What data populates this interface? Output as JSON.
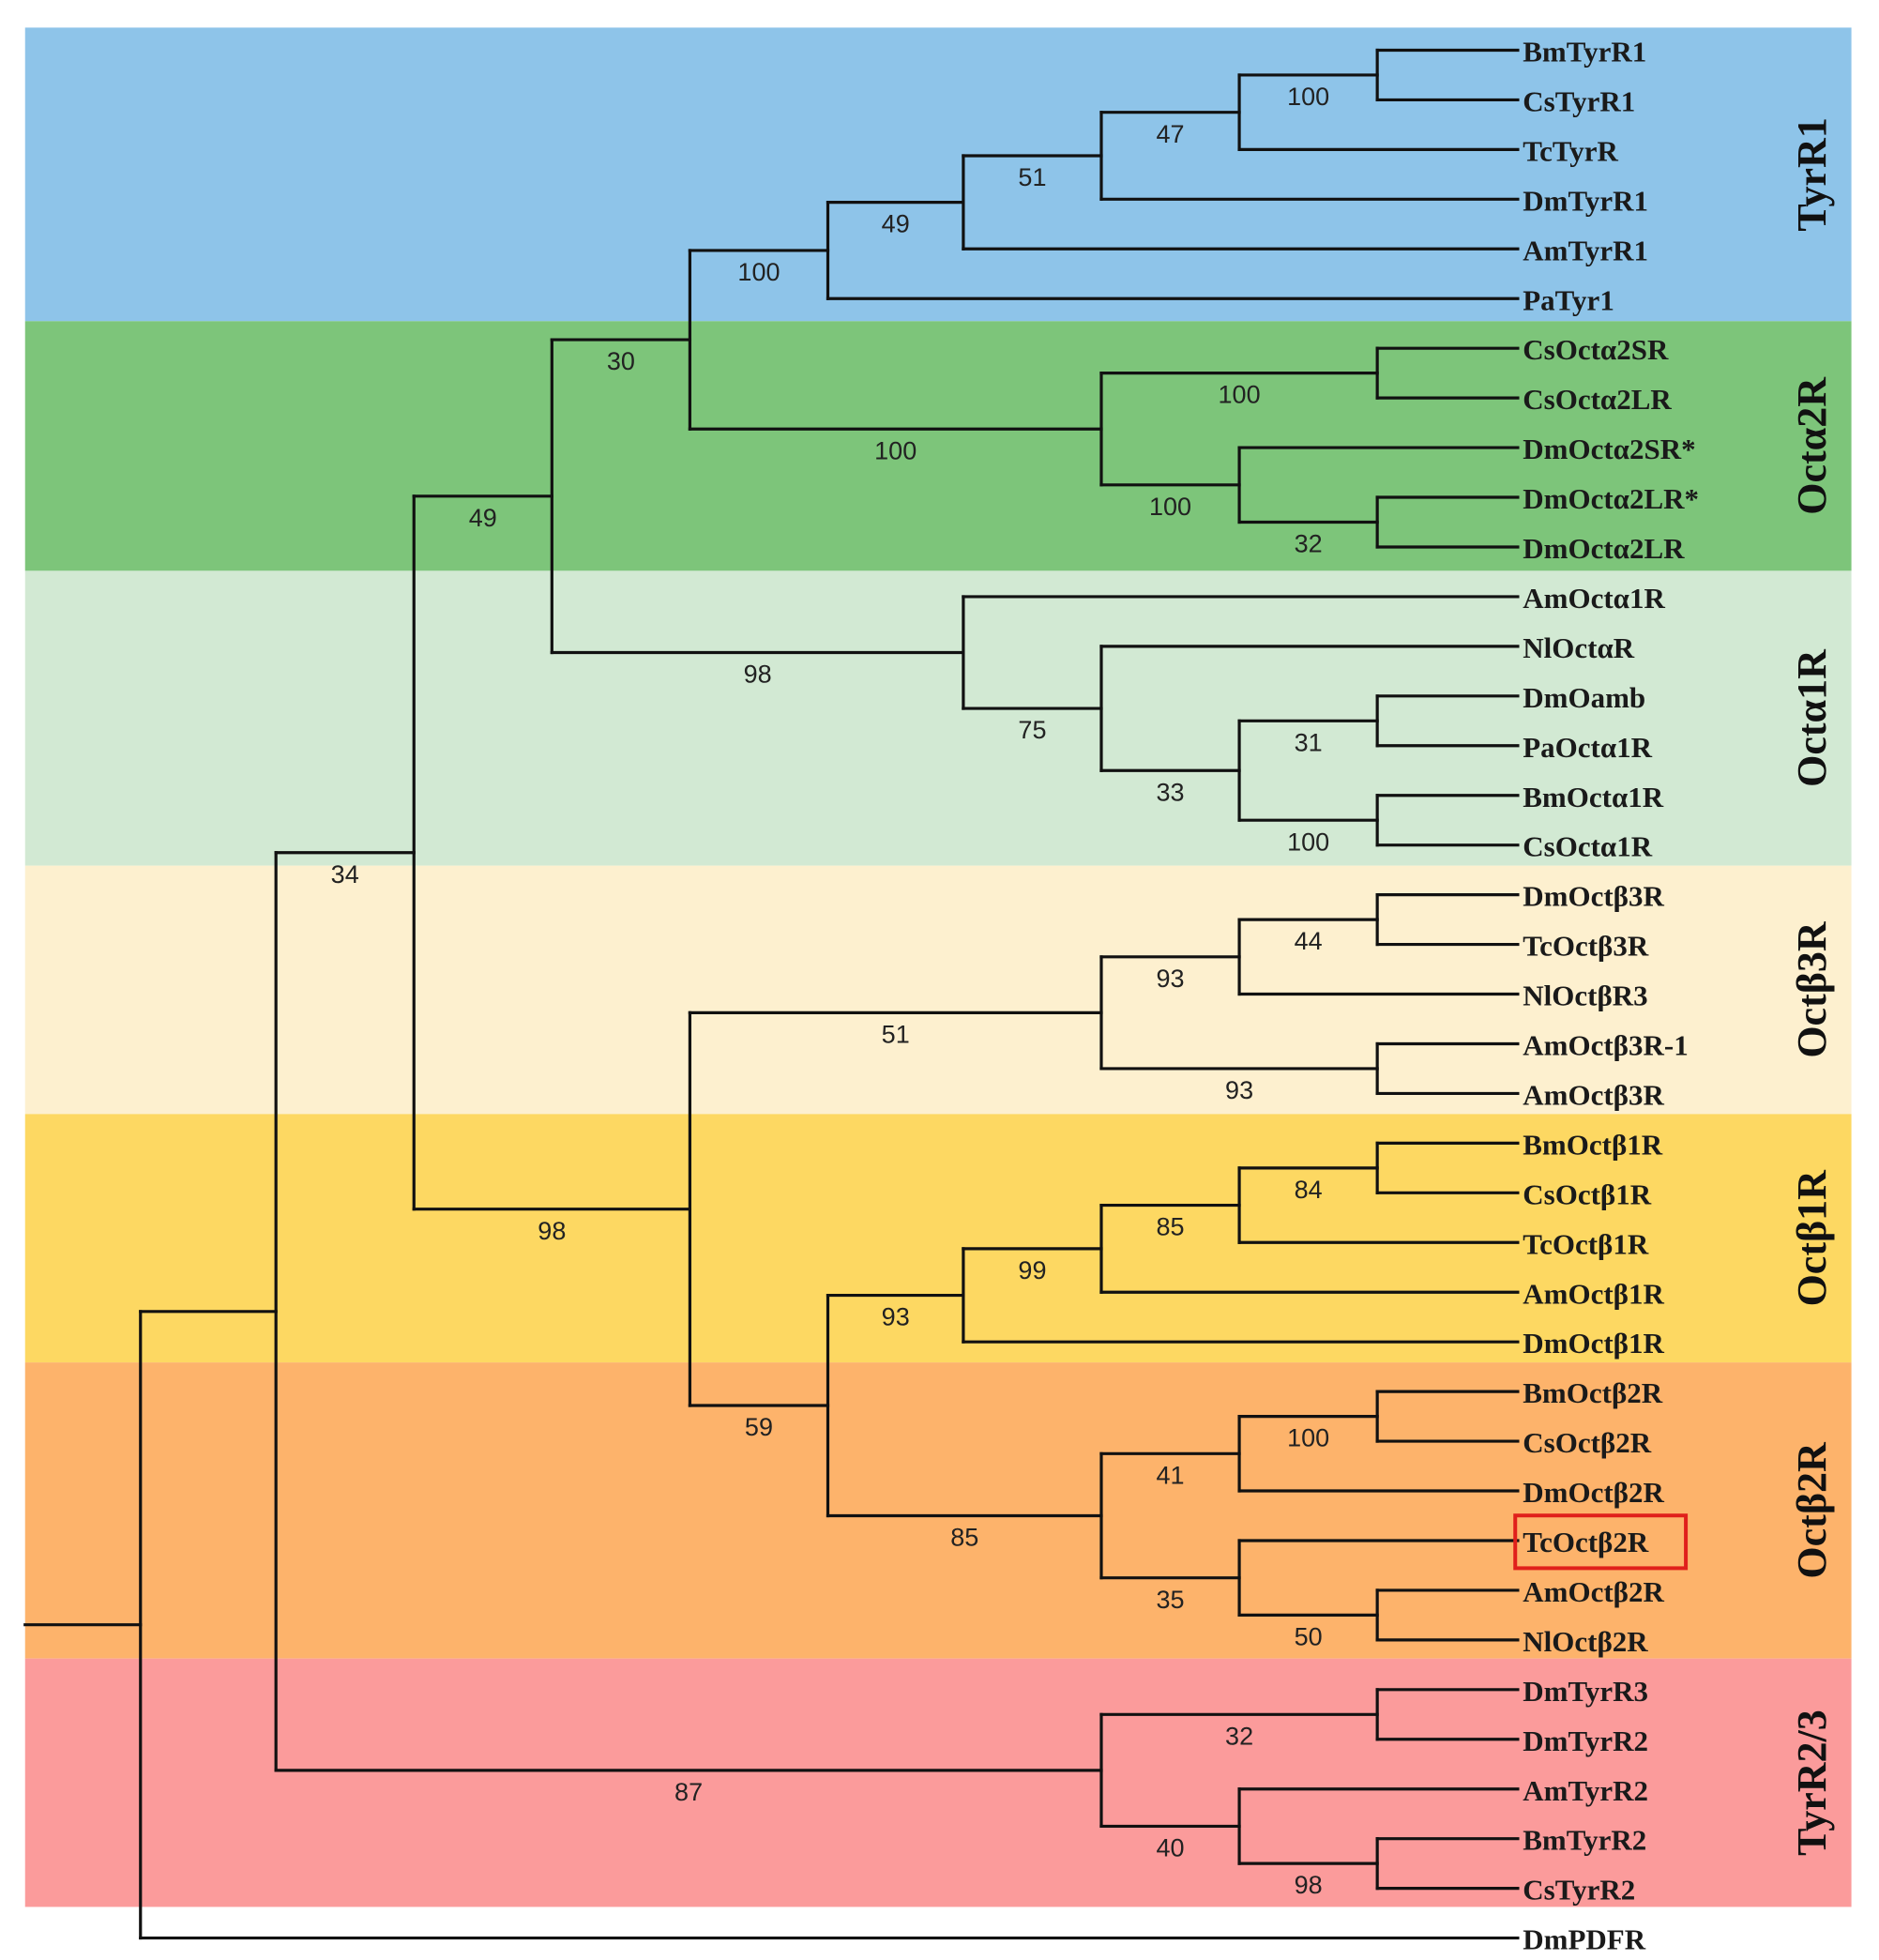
{
  "figure": {
    "title": "",
    "highlight_color": "#e0201b"
  },
  "clades": [
    {
      "name": "TyrR1",
      "color": "#8ec4e9"
    },
    {
      "name": "Octα2R",
      "color": "#7dc57a"
    },
    {
      "name": "Octα1R",
      "color": "#d2e9d3"
    },
    {
      "name": "Octβ3R",
      "color": "#fdf0cf"
    },
    {
      "name": "Octβ1R",
      "color": "#fdd862"
    },
    {
      "name": "Octβ2R",
      "color": "#fdb36b"
    },
    {
      "name": "TyrR2/3",
      "color": "#fb9b9b"
    }
  ],
  "leaves": [
    "BmTyrR1",
    "CsTyrR1",
    "TcTyrR",
    "DmTyrR1",
    "AmTyrR1",
    "PaTyr1",
    "CsOctα2SR",
    "CsOctα2LR",
    "DmOctα2SR*",
    "DmOctα2LR*",
    "DmOctα2LR",
    "AmOctα1R",
    "NlOctαR",
    "DmOamb",
    "PaOctα1R",
    "BmOctα1R",
    "CsOctα1R",
    "DmOctβ3R",
    "TcOctβ3R",
    "NlOctβR3",
    "AmOctβ3R-1",
    "AmOctβ3R",
    "BmOctβ1R",
    "CsOctβ1R",
    "TcOctβ1R",
    "AmOctβ1R",
    "DmOctβ1R",
    "BmOctβ2R",
    "CsOctβ2R",
    "DmOctβ2R",
    "TcOctβ2R",
    "AmOctβ2R",
    "NlOctβ2R",
    "DmTyrR3",
    "DmTyrR2",
    "AmTyrR2",
    "BmTyrR2",
    "CsTyrR2",
    "DmPDFR"
  ],
  "highlighted_leaf": "TcOctβ2R",
  "bootstrap_values": [
    "100",
    "47",
    "51",
    "49",
    "100",
    "100",
    "32",
    "100",
    "100",
    "30",
    "31",
    "100",
    "33",
    "75",
    "98",
    "49",
    "44",
    "93",
    "93",
    "51",
    "84",
    "85",
    "99",
    "93",
    "100",
    "41",
    "50",
    "35",
    "85",
    "59",
    "98",
    "34",
    "32",
    "98",
    "40",
    "87"
  ]
}
